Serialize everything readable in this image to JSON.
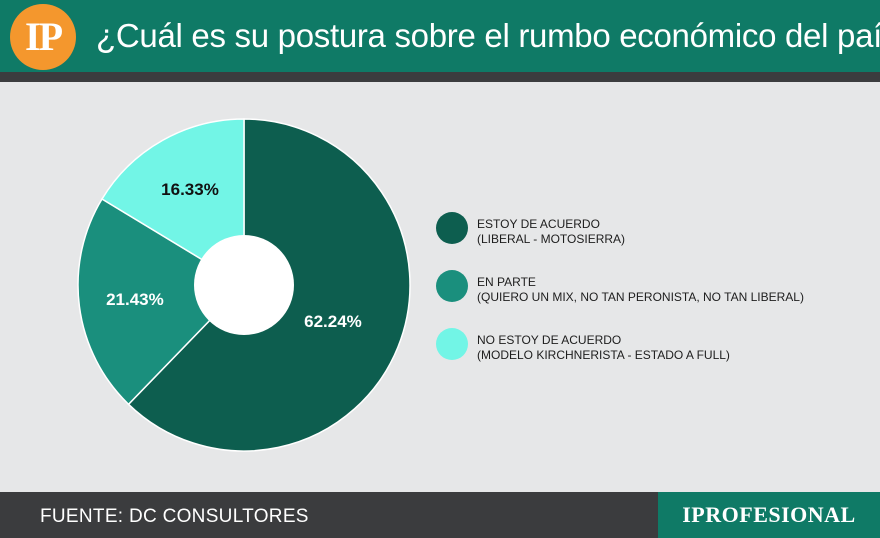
{
  "header": {
    "logo_text": "IP",
    "title": "¿Cuál es su postura sobre el rumbo económico del país?"
  },
  "chart_data": {
    "type": "pie",
    "donut": true,
    "slices": [
      {
        "label": "ESTOY DE ACUERDO",
        "sublabel": "(LIBERAL - MOTOSIERRA)",
        "value": 62.24,
        "value_label": "62.24%",
        "color": "#0d5e4f",
        "label_color": "#ffffff"
      },
      {
        "label": "EN PARTE",
        "sublabel": "(QUIERO UN MIX, NO TAN PERONISTA, NO TAN LIBERAL)",
        "value": 21.43,
        "value_label": "21.43%",
        "color": "#1a8f7d",
        "label_color": "#ffffff"
      },
      {
        "label": "NO ESTOY DE ACUERDO",
        "sublabel": "(MODELO KIRCHNERISTA - ESTADO A FULL)",
        "value": 16.33,
        "value_label": "16.33%",
        "color": "#72f5e6",
        "label_color": "#111111"
      }
    ],
    "legend_position": "right"
  },
  "footer": {
    "source": "FUENTE: DC CONSULTORES",
    "brand": "IPROFESIONAL"
  }
}
